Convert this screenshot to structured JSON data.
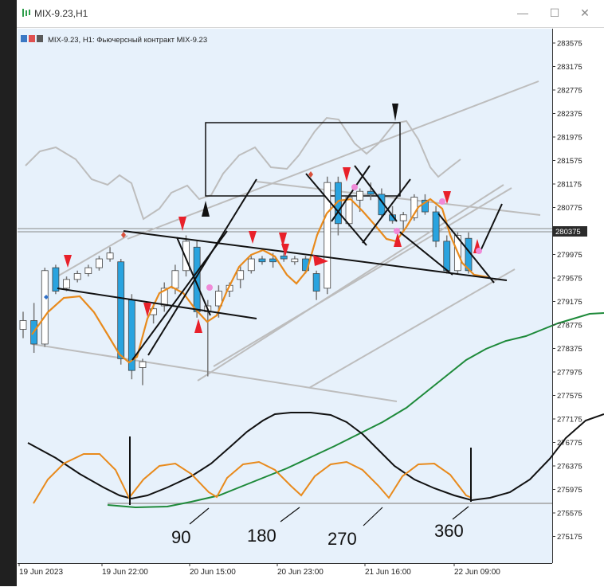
{
  "window": {
    "title": "MIX-9.23,H1",
    "minimize_label": "—",
    "maximize_label": "☐",
    "close_label": "✕"
  },
  "chart_header": "MIX-9.23, H1:  Фьючерсный контракт MIX-9.23",
  "colors": {
    "plot_bg": "#e7f1fb",
    "bull_candle": "#ffffff",
    "bear_candle": "#29a3df",
    "orange_ma": "#e88a1c",
    "green_ma": "#1e8a3a",
    "gray_lines": "#b8b8b8",
    "signal_arrow": "#e8202a",
    "marker_pink": "#f08ad8"
  },
  "chart_data": {
    "type": "line",
    "y_axis_ticks": [
      "283575",
      "283175",
      "282775",
      "282375",
      "281975",
      "281575",
      "281175",
      "280775",
      "280375",
      "279975",
      "279575",
      "279175",
      "278775",
      "278375",
      "277975",
      "277575",
      "277175",
      "276775",
      "276375",
      "275975",
      "275575",
      "275175"
    ],
    "current_price": "280375",
    "ylim": [
      275000,
      283700
    ],
    "x_axis_ticks": [
      "19 Jun 2023",
      "19 Jun 22:00",
      "20 Jun 15:00",
      "20 Jun 23:00",
      "21 Jun 16:00",
      "22 Jun 09:00"
    ],
    "annotations": [
      "90",
      "180",
      "270",
      "360"
    ],
    "candles": [
      {
        "o": 278700,
        "h": 279000,
        "l": 278550,
        "c": 278850
      },
      {
        "o": 278850,
        "h": 279150,
        "l": 278300,
        "c": 278450
      },
      {
        "o": 278450,
        "h": 279750,
        "l": 278400,
        "c": 279700
      },
      {
        "o": 279750,
        "h": 279800,
        "l": 279300,
        "c": 279350
      },
      {
        "o": 279400,
        "h": 279600,
        "l": 279350,
        "c": 279550
      },
      {
        "o": 279550,
        "h": 279700,
        "l": 279500,
        "c": 279650
      },
      {
        "o": 279650,
        "h": 279800,
        "l": 279600,
        "c": 279750
      },
      {
        "o": 279750,
        "h": 279950,
        "l": 279700,
        "c": 279900
      },
      {
        "o": 279900,
        "h": 280100,
        "l": 279850,
        "c": 280000
      },
      {
        "o": 279850,
        "h": 279900,
        "l": 278100,
        "c": 278200
      },
      {
        "o": 279200,
        "h": 279300,
        "l": 277850,
        "c": 278000
      },
      {
        "o": 278050,
        "h": 278200,
        "l": 277750,
        "c": 278150
      },
      {
        "o": 278950,
        "h": 279150,
        "l": 278800,
        "c": 279050
      },
      {
        "o": 279100,
        "h": 279500,
        "l": 279000,
        "c": 279400
      },
      {
        "o": 279400,
        "h": 279800,
        "l": 279300,
        "c": 279700
      },
      {
        "o": 279700,
        "h": 280300,
        "l": 279600,
        "c": 280200
      },
      {
        "o": 280100,
        "h": 280200,
        "l": 278900,
        "c": 279000
      },
      {
        "o": 279000,
        "h": 279200,
        "l": 277900,
        "c": 279100
      },
      {
        "o": 279100,
        "h": 279450,
        "l": 278900,
        "c": 279350
      },
      {
        "o": 279350,
        "h": 279500,
        "l": 279250,
        "c": 279450
      },
      {
        "o": 279550,
        "h": 279800,
        "l": 279400,
        "c": 279700
      },
      {
        "o": 279700,
        "h": 279950,
        "l": 279650,
        "c": 279900
      },
      {
        "o": 279900,
        "h": 279950,
        "l": 279800,
        "c": 279850
      },
      {
        "o": 279900,
        "h": 280000,
        "l": 279750,
        "c": 279850
      },
      {
        "o": 279950,
        "h": 280000,
        "l": 279850,
        "c": 279900
      },
      {
        "o": 279850,
        "h": 279950,
        "l": 279800,
        "c": 279900
      },
      {
        "o": 279900,
        "h": 279950,
        "l": 279650,
        "c": 279700
      },
      {
        "o": 279650,
        "h": 279700,
        "l": 279200,
        "c": 279350
      },
      {
        "o": 279400,
        "h": 281300,
        "l": 279300,
        "c": 281200
      },
      {
        "o": 281200,
        "h": 281300,
        "l": 280300,
        "c": 280500
      },
      {
        "o": 280500,
        "h": 281000,
        "l": 280450,
        "c": 280950
      },
      {
        "o": 280900,
        "h": 281100,
        "l": 280700,
        "c": 281050
      },
      {
        "o": 281050,
        "h": 281200,
        "l": 280900,
        "c": 281000
      },
      {
        "o": 281000,
        "h": 281100,
        "l": 280600,
        "c": 280650
      },
      {
        "o": 280650,
        "h": 280800,
        "l": 280500,
        "c": 280550
      },
      {
        "o": 280550,
        "h": 280700,
        "l": 280350,
        "c": 280650
      },
      {
        "o": 280600,
        "h": 281000,
        "l": 280550,
        "c": 280950
      },
      {
        "o": 280900,
        "h": 281000,
        "l": 280650,
        "c": 280700
      },
      {
        "o": 280700,
        "h": 280800,
        "l": 280100,
        "c": 280200
      },
      {
        "o": 280200,
        "h": 280300,
        "l": 279650,
        "c": 279700
      },
      {
        "o": 279700,
        "h": 280350,
        "l": 279650,
        "c": 280300
      },
      {
        "o": 280250,
        "h": 280350,
        "l": 279650,
        "c": 279700
      }
    ]
  }
}
